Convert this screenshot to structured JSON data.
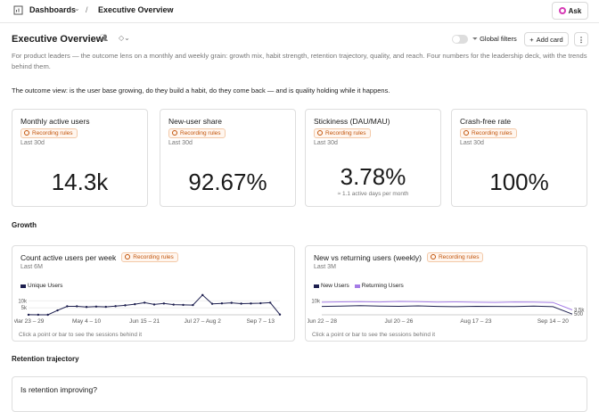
{
  "breadcrumb": {
    "root": "Dashboards",
    "current": "Executive Overview"
  },
  "ask_button": "Ask",
  "header": {
    "title": "Executive Overview",
    "global_filters": "Global filters",
    "add_card": "Add card",
    "description": "For product leaders — the outcome lens on a monthly and weekly grain: growth mix, habit strength, retention trajectory, quality, and reach. Four numbers for the leadership deck, with the trends behind them.",
    "intro": "The outcome view: is the user base growing, do they build a habit, do they come back — and is quality holding while it happens."
  },
  "metrics": [
    {
      "title": "Monthly active users",
      "badge": "Recording rules",
      "range": "Last 30d",
      "value": "14.3k"
    },
    {
      "title": "New-user share",
      "badge": "Recording rules",
      "range": "Last 30d",
      "value": "92.67%"
    },
    {
      "title": "Stickiness (DAU/MAU)",
      "badge": "Recording rules",
      "range": "Last 30d",
      "value": "3.78%",
      "note": "≈ 1.1 active days per month"
    },
    {
      "title": "Crash-free rate",
      "badge": "Recording rules",
      "range": "Last 30d",
      "value": "100%"
    }
  ],
  "sections": {
    "growth": "Growth",
    "retention": "Retention trajectory"
  },
  "charts": [
    {
      "type": "line",
      "title": "Count active users per week",
      "badge": "Recording rules",
      "range": "Last 6M",
      "categories": [
        "Mar 23 – 29",
        null,
        null,
        null,
        null,
        null,
        "May 4 – 10",
        null,
        null,
        null,
        null,
        null,
        "Jun 15 – 21",
        null,
        null,
        null,
        null,
        null,
        "Jul 27 – Aug 2",
        null,
        null,
        null,
        null,
        null,
        "Sep 7 – 13",
        null,
        null
      ],
      "series": [
        {
          "name": "Unique Users",
          "color": "#1d1f4f",
          "values": [
            35,
            14,
            4,
            3166,
            6108,
            6100,
            5600,
            5900,
            5700,
            6200,
            6800,
            7600,
            8703,
            7400,
            8100,
            7300,
            7100,
            7000,
            14213,
            7900,
            8200,
            8600,
            8000,
            8100,
            8300,
            8711,
            200
          ]
        }
      ],
      "ylim": [
        0,
        16000
      ],
      "yticks": [
        {
          "value": 5000,
          "label": "5k"
        },
        {
          "value": 10000,
          "label": "10k"
        }
      ],
      "footer": "Click a point or bar to see the sessions behind it"
    },
    {
      "type": "line",
      "title": "New vs returning users (weekly)",
      "badge": "Recording rules",
      "range": "Last 3M",
      "categories": [
        "Jun 22 – 28",
        null,
        null,
        null,
        "Jul 20 – 26",
        null,
        null,
        null,
        "Aug 17 – 23",
        null,
        null,
        null,
        "Sep 14 – 20",
        null
      ],
      "series": [
        {
          "name": "New Users",
          "color": "#1d1f4f",
          "values": [
            6000,
            6200,
            6500,
            6300,
            6100,
            6400,
            6000,
            5800,
            6100,
            6000,
            5900,
            6200,
            5800,
            500
          ],
          "end_label": "500"
        },
        {
          "name": "Returning Users",
          "color": "#a57ce6",
          "values": [
            9000,
            9300,
            9500,
            9200,
            9600,
            9400,
            9100,
            9300,
            9000,
            8900,
            9200,
            9100,
            8800,
            3500
          ],
          "end_label": "3.5k"
        }
      ],
      "ylim": [
        0,
        16000
      ],
      "yticks": [
        {
          "value": 10000,
          "label": "10k"
        }
      ],
      "footer": "Click a point or bar to see the sessions behind it"
    }
  ],
  "retention_card": {
    "title": "Is retention improving?"
  }
}
